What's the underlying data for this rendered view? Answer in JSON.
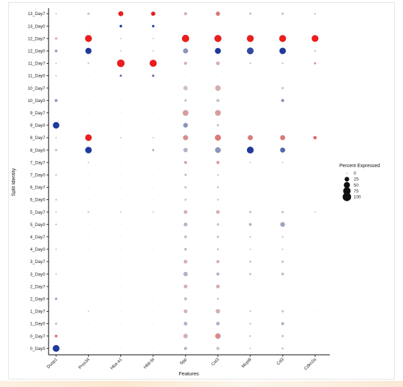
{
  "chart_data": {
    "type": "dotplot",
    "xlabel": "Features",
    "ylabel": "Split Identity",
    "features": [
      "Dusp1",
      "Prss34",
      "Hba-a1",
      "Hbb-bt",
      "Spp",
      "Cst3",
      "Mcpt8",
      "Cd3",
      "Cdkn2a"
    ],
    "groups": [
      "13_Day7",
      "13_Day0",
      "12_Day7",
      "12_Day0",
      "11_Day7",
      "11_Day0",
      "10_Day7",
      "10_Day0",
      "9_Day7",
      "9_Day0",
      "8_Day7",
      "8_Day0",
      "7_Day7",
      "7_Day0",
      "6_Day7",
      "6_Day0",
      "5_Day7",
      "5_Day0",
      "4_Day7",
      "4_Day0",
      "3_Day7",
      "3_Day0",
      "2_Day7",
      "2_Day0",
      "1_Day7",
      "1_Day0",
      "0_Day7",
      "0_Day0"
    ],
    "color_day7_high": "#ee1c1c",
    "color_day0_high": "#1e3a9e",
    "color_low": "#d3d3d3",
    "legend": {
      "title": "Percent Expressed",
      "position": "right",
      "levels": [
        {
          "label": "0",
          "value": 0
        },
        {
          "label": "25",
          "value": 25
        },
        {
          "label": "50",
          "value": 50
        },
        {
          "label": "75",
          "value": 75
        },
        {
          "label": "100",
          "value": 100
        }
      ]
    },
    "rows": [
      {
        "group": "13_Day7",
        "pct": [
          1,
          5,
          30,
          20,
          10,
          20,
          5,
          5,
          2
        ],
        "expr": [
          0.1,
          0.1,
          1,
          1,
          0.2,
          0.5,
          0.1,
          0.1,
          0.1
        ]
      },
      {
        "group": "13_Day0",
        "pct": [
          0,
          0,
          6,
          5,
          0,
          0,
          0,
          0,
          0
        ],
        "expr": [
          0,
          0,
          1,
          1,
          0,
          0,
          0,
          0,
          0
        ]
      },
      {
        "group": "12_Day7",
        "pct": [
          5,
          62,
          1,
          1,
          70,
          65,
          62,
          62,
          60
        ],
        "expr": [
          0.2,
          1,
          0.1,
          0.1,
          1,
          1,
          1,
          1,
          1
        ]
      },
      {
        "group": "12_Day0",
        "pct": [
          8,
          48,
          1,
          1,
          30,
          45,
          60,
          55,
          2
        ],
        "expr": [
          0.3,
          1,
          0.1,
          0.1,
          0.4,
          1,
          0.9,
          1,
          0.1
        ]
      },
      {
        "group": "11_Day7",
        "pct": [
          1,
          2,
          75,
          65,
          10,
          15,
          2,
          2,
          4
        ],
        "expr": [
          0.1,
          0.1,
          1,
          1,
          0.2,
          0.2,
          0.1,
          0.1,
          0.3
        ]
      },
      {
        "group": "11_Day0",
        "pct": [
          1,
          0,
          4,
          5,
          0,
          0,
          0,
          0,
          0
        ],
        "expr": [
          0.1,
          0,
          0.6,
          0.6,
          0,
          0,
          0,
          0,
          0
        ]
      },
      {
        "group": "10_Day7",
        "pct": [
          0,
          0,
          0,
          0,
          20,
          35,
          0,
          5,
          0
        ],
        "expr": [
          0,
          0,
          0,
          0,
          0.1,
          0.2,
          0,
          0.1,
          0
        ]
      },
      {
        "group": "10_Day0",
        "pct": [
          8,
          0,
          0,
          0,
          5,
          10,
          0,
          10,
          0
        ],
        "expr": [
          0.4,
          0,
          0,
          0,
          0.1,
          0.1,
          0,
          0.4,
          0
        ]
      },
      {
        "group": "9_Day7",
        "pct": [
          0,
          0,
          0,
          0,
          40,
          40,
          0,
          0,
          0
        ],
        "expr": [
          0,
          0,
          0,
          0,
          0.3,
          0.3,
          0,
          0,
          0
        ]
      },
      {
        "group": "9_Day0",
        "pct": [
          55,
          0,
          0,
          0,
          25,
          5,
          0,
          0,
          0
        ],
        "expr": [
          1,
          0,
          0,
          0,
          0.4,
          0.1,
          0,
          0,
          0
        ]
      },
      {
        "group": "8_Day7",
        "pct": [
          1,
          55,
          1,
          1,
          30,
          45,
          30,
          30,
          12
        ],
        "expr": [
          0.1,
          1,
          0.1,
          0.1,
          0.4,
          0.5,
          0.5,
          0.5,
          0.6
        ]
      },
      {
        "group": "8_Day0",
        "pct": [
          3,
          55,
          0,
          3,
          20,
          40,
          60,
          30,
          0
        ],
        "expr": [
          0.2,
          1,
          0,
          0.3,
          0.2,
          0.4,
          1,
          0.7,
          0
        ]
      },
      {
        "group": "7_Day7",
        "pct": [
          0,
          1,
          0,
          0,
          8,
          10,
          1,
          1,
          0
        ],
        "expr": [
          0,
          0.1,
          0,
          0,
          0.3,
          0.3,
          0.1,
          0.1,
          0
        ]
      },
      {
        "group": "7_Day0",
        "pct": [
          2,
          0,
          0,
          0,
          5,
          2,
          0,
          0,
          0
        ],
        "expr": [
          0.1,
          0,
          0,
          0,
          0.1,
          0.1,
          0,
          0,
          0
        ]
      },
      {
        "group": "6_Day7",
        "pct": [
          0,
          0,
          0,
          0,
          5,
          3,
          0,
          0,
          0
        ],
        "expr": [
          0,
          0,
          0,
          0,
          0.1,
          0.1,
          0,
          0,
          0
        ]
      },
      {
        "group": "6_Day0",
        "pct": [
          2,
          0,
          0,
          0,
          3,
          2,
          0,
          0,
          0
        ],
        "expr": [
          0.1,
          0,
          0,
          0,
          0.1,
          0.1,
          0,
          0,
          0
        ]
      },
      {
        "group": "5_Day7",
        "pct": [
          1,
          2,
          1,
          1,
          15,
          15,
          5,
          5,
          1
        ],
        "expr": [
          0.1,
          0.1,
          0.1,
          0.1,
          0.2,
          0.2,
          0.1,
          0.1,
          0.1
        ]
      },
      {
        "group": "5_Day0",
        "pct": [
          2,
          0,
          0,
          0,
          15,
          5,
          8,
          25,
          0
        ],
        "expr": [
          0.1,
          0,
          0,
          0,
          0.2,
          0.1,
          0.2,
          0.3,
          0
        ]
      },
      {
        "group": "4_Day7",
        "pct": [
          0,
          0,
          0,
          0,
          10,
          5,
          2,
          2,
          0
        ],
        "expr": [
          0,
          0,
          0,
          0,
          0.1,
          0.1,
          0.1,
          0.1,
          0
        ]
      },
      {
        "group": "4_Day0",
        "pct": [
          1,
          0,
          0,
          0,
          8,
          3,
          1,
          1,
          0
        ],
        "expr": [
          0.1,
          0,
          0,
          0,
          0.1,
          0.1,
          0.1,
          0.1,
          0
        ]
      },
      {
        "group": "3_Day7",
        "pct": [
          0,
          0,
          0,
          0,
          15,
          10,
          4,
          5,
          0
        ],
        "expr": [
          0,
          0,
          0,
          0,
          0.2,
          0.2,
          0.1,
          0.1,
          0
        ]
      },
      {
        "group": "3_Day0",
        "pct": [
          1,
          0,
          0,
          0,
          20,
          10,
          4,
          8,
          0
        ],
        "expr": [
          0.1,
          0,
          0,
          0,
          0.2,
          0.2,
          0.1,
          0.1,
          0
        ]
      },
      {
        "group": "2_Day7",
        "pct": [
          0,
          0,
          0,
          0,
          15,
          15,
          0,
          0,
          0
        ],
        "expr": [
          0,
          0,
          0,
          0,
          0.2,
          0.2,
          0,
          0,
          0
        ]
      },
      {
        "group": "2_Day0",
        "pct": [
          5,
          0,
          0,
          0,
          10,
          3,
          0,
          0,
          0
        ],
        "expr": [
          0.3,
          0,
          0,
          0,
          0.1,
          0.1,
          0,
          0,
          0
        ]
      },
      {
        "group": "1_Day7",
        "pct": [
          0,
          1,
          0,
          0,
          15,
          20,
          2,
          5,
          0
        ],
        "expr": [
          0,
          0.1,
          0,
          0,
          0.2,
          0.2,
          0.1,
          0.1,
          0
        ]
      },
      {
        "group": "1_Day0",
        "pct": [
          3,
          0,
          0,
          0,
          15,
          15,
          2,
          10,
          0
        ],
        "expr": [
          0.2,
          0,
          0,
          0,
          0.2,
          0.2,
          0.1,
          0.2,
          0
        ]
      },
      {
        "group": "0_Day7",
        "pct": [
          8,
          0,
          0,
          0,
          20,
          35,
          2,
          5,
          0
        ],
        "expr": [
          0.5,
          0,
          0,
          0,
          0.2,
          0.4,
          0.1,
          0.1,
          0
        ]
      },
      {
        "group": "0_Day0",
        "pct": [
          60,
          0,
          0,
          0,
          10,
          10,
          1,
          3,
          0
        ],
        "expr": [
          1,
          0,
          0,
          0,
          0.2,
          0.1,
          0.1,
          0.1,
          0
        ]
      }
    ]
  }
}
